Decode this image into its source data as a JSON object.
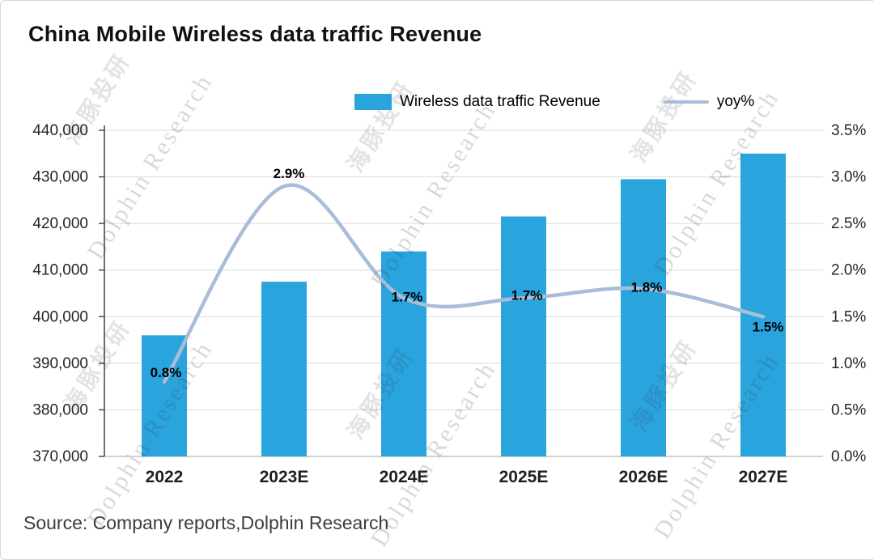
{
  "title": "China Mobile Wireless data traffic Revenue",
  "source": "Source: Company reports,Dolphin Research",
  "watermark": {
    "text": "Dolphin Research",
    "cjk": "海豚投研"
  },
  "legend": [
    {
      "label": "Wireless data traffic Revenue",
      "type": "bar"
    },
    {
      "label": "yoy%",
      "type": "line"
    }
  ],
  "chart_data": {
    "type": "bar",
    "subtype": "bar+line-combo",
    "title": "China Mobile Wireless data traffic Revenue",
    "categories": [
      "2022",
      "2023E",
      "2024E",
      "2025E",
      "2026E",
      "2027E"
    ],
    "series": [
      {
        "name": "Wireless data traffic Revenue",
        "type": "bar",
        "axis": "left",
        "values": [
          396000,
          407500,
          414000,
          421500,
          429500,
          435000
        ]
      },
      {
        "name": "yoy%",
        "type": "line",
        "axis": "right",
        "values": [
          0.8,
          2.9,
          1.7,
          1.7,
          1.8,
          1.5
        ],
        "labels": [
          "0.8%",
          "2.9%",
          "1.7%",
          "1.7%",
          "1.8%",
          "1.5%"
        ]
      }
    ],
    "left_axis": {
      "min": 370000,
      "max": 440000,
      "ticks": [
        "370,000",
        "380,000",
        "390,000",
        "400,000",
        "410,000",
        "420,000",
        "430,000",
        "440,000"
      ]
    },
    "right_axis": {
      "min": 0,
      "max": 3.5,
      "ticks": [
        "0.0%",
        "0.5%",
        "1.0%",
        "1.5%",
        "2.0%",
        "2.5%",
        "3.0%",
        "3.5%"
      ]
    },
    "grid": true,
    "legend_position": "top",
    "colors": {
      "bar": "#29a4dd",
      "line": "#a9bdd8",
      "grid": "#d9d9d9",
      "axis": "#404040",
      "tick_label": "#262626",
      "data_label": "#000000"
    }
  }
}
